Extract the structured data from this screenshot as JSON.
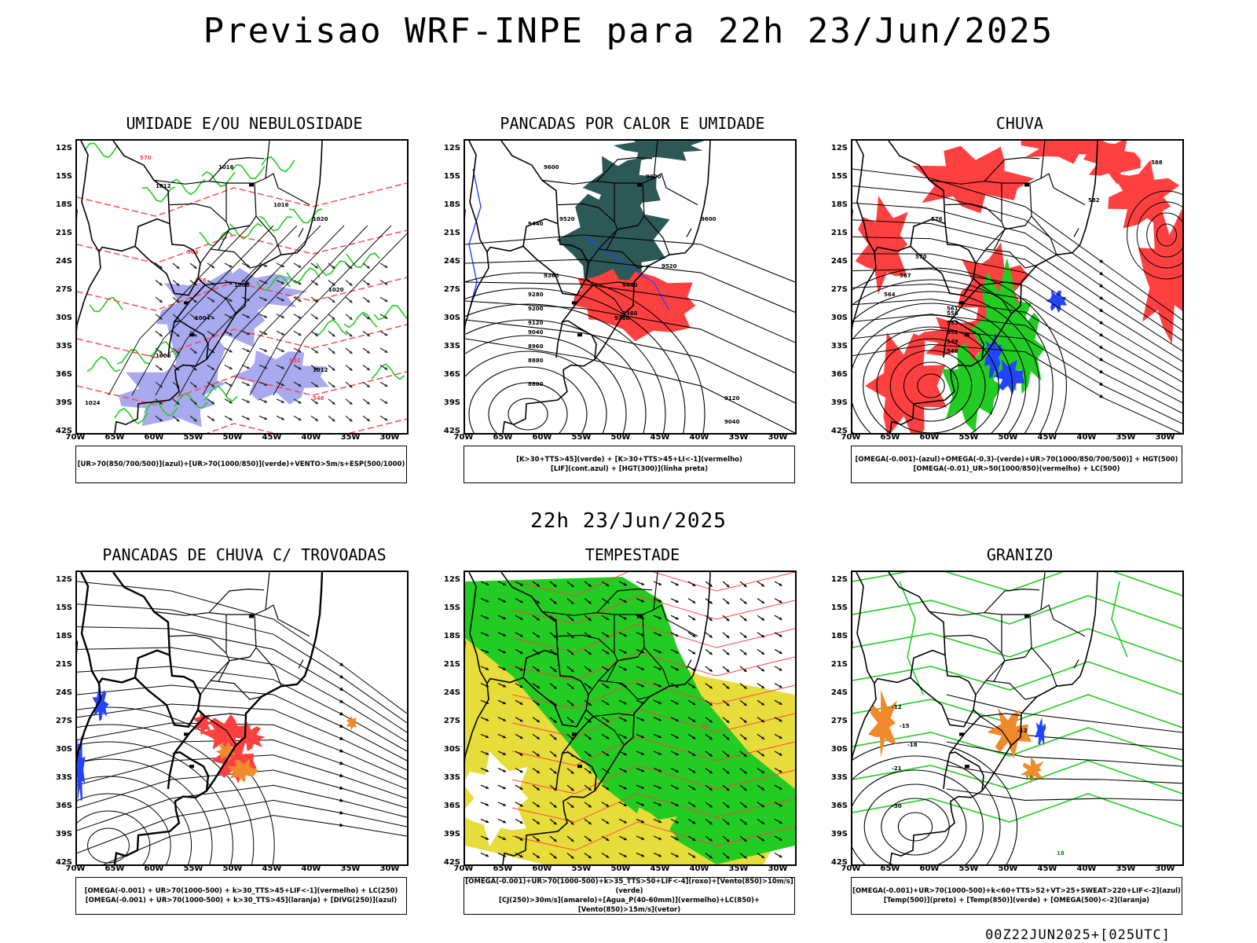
{
  "title": "Previsao WRF-INPE  para 22h 23/Jun/2025",
  "middle_label": "22h 23/Jun/2025",
  "footer": "00Z22JUN2025+[025UTC]",
  "axes": {
    "lat_ticks": [
      "12S",
      "15S",
      "18S",
      "21S",
      "24S",
      "27S",
      "30S",
      "33S",
      "36S",
      "39S",
      "42S"
    ],
    "lon_ticks": [
      "70W",
      "65W",
      "60W",
      "55W",
      "50W",
      "45W",
      "40W",
      "35W",
      "30W"
    ]
  },
  "colors": {
    "humidity_blue": "#a9a9f0",
    "green_contour": "#22cc22",
    "red_contour": "#ff4040",
    "dark_teal": "#2c5856",
    "blue": "#2244ff",
    "yellow": "#e6dd3a",
    "orange": "#f08a2a"
  },
  "panels": [
    {
      "id": "umidade",
      "title": "UMIDADE E/OU NEBULOSIDADE",
      "legend": [
        "[UR>70(850/700/500)](azul)+[UR>70(1000/850)](verde)+VENTO>5m/s+ESP(500/1000)"
      ],
      "contour_labels": [
        "1016",
        "1012",
        "1016",
        "1020",
        "1008",
        "1004",
        "1000",
        "1012",
        "1020",
        "1024",
        "570",
        "564",
        "558",
        "552",
        "546"
      ]
    },
    {
      "id": "pancadas_calor",
      "title": "PANCADAS POR CALOR E UMIDADE",
      "legend": [
        "[K>30+TTS>45](verde) + [K>30+TTS>45+LI<-1](vermelho)",
        "[LIF](cont.azul) + [HGT(300)](linha preta)"
      ],
      "contour_labels": [
        "9600",
        "9600",
        "9520",
        "9440",
        "9360",
        "9280",
        "9200",
        "9120",
        "9040",
        "8960",
        "8880",
        "8800",
        "9600",
        "9520",
        "9440",
        "9360",
        "9280",
        "9120",
        "9040"
      ]
    },
    {
      "id": "chuva",
      "title": "CHUVA",
      "legend": [
        "[OMEGA(-0.001)-(azul)+OMEGA(-0.3)-(verde)+UR>70(1000/850/700/500)] + HGT(500)",
        "[OMEGA(-0.01)_UR>50(1000/850)(vermelho) + LC(500)"
      ],
      "contour_labels": [
        "588",
        "582",
        "576",
        "570",
        "567",
        "564",
        "561",
        "558",
        "555",
        "552",
        "549",
        "546"
      ]
    },
    {
      "id": "pancadas_trovoadas",
      "title": "PANCADAS DE CHUVA C/ TROVOADAS",
      "legend": [
        "[OMEGA(-0.001) + UR>70(1000-500) + k>30_TTS>45+LIF<-1](vermelho) + LC(250)",
        "[OMEGA(-0.001) + UR>70(1000-500) + k>30_TTS>45](laranja) + [DIVG(250)](azul)"
      ],
      "contour_labels": []
    },
    {
      "id": "tempestade",
      "title": "TEMPESTADE",
      "legend": [
        "[OMEGA(-0.001)+UR>70(1000-500)+k>35_TTS>50+LIF<-4](roxo)+[Vento(850)>10m/s](verde)",
        "[CJ(250)>30m/s](amarelo)+[Agua_P(40-60mm)](vermelho)+LC(850)+[Vento(850)>15m/s](vetor)"
      ],
      "contour_labels": [
        "10"
      ]
    },
    {
      "id": "granizo",
      "title": "GRANIZO",
      "legend": [
        "[OMEGA(-0.001)+UR>70(1000-500)+k<60+TTS>52+VT>25+SWEAT>220+LIF<-2](azul)",
        "[Temp(500)](preto) + [Temp(850)](verde) + [OMEGA(500)<-2](laranja)"
      ],
      "contour_labels": [
        "-12",
        "-15",
        "-18",
        "-21",
        "-30",
        "-12",
        "15",
        "18"
      ]
    }
  ]
}
